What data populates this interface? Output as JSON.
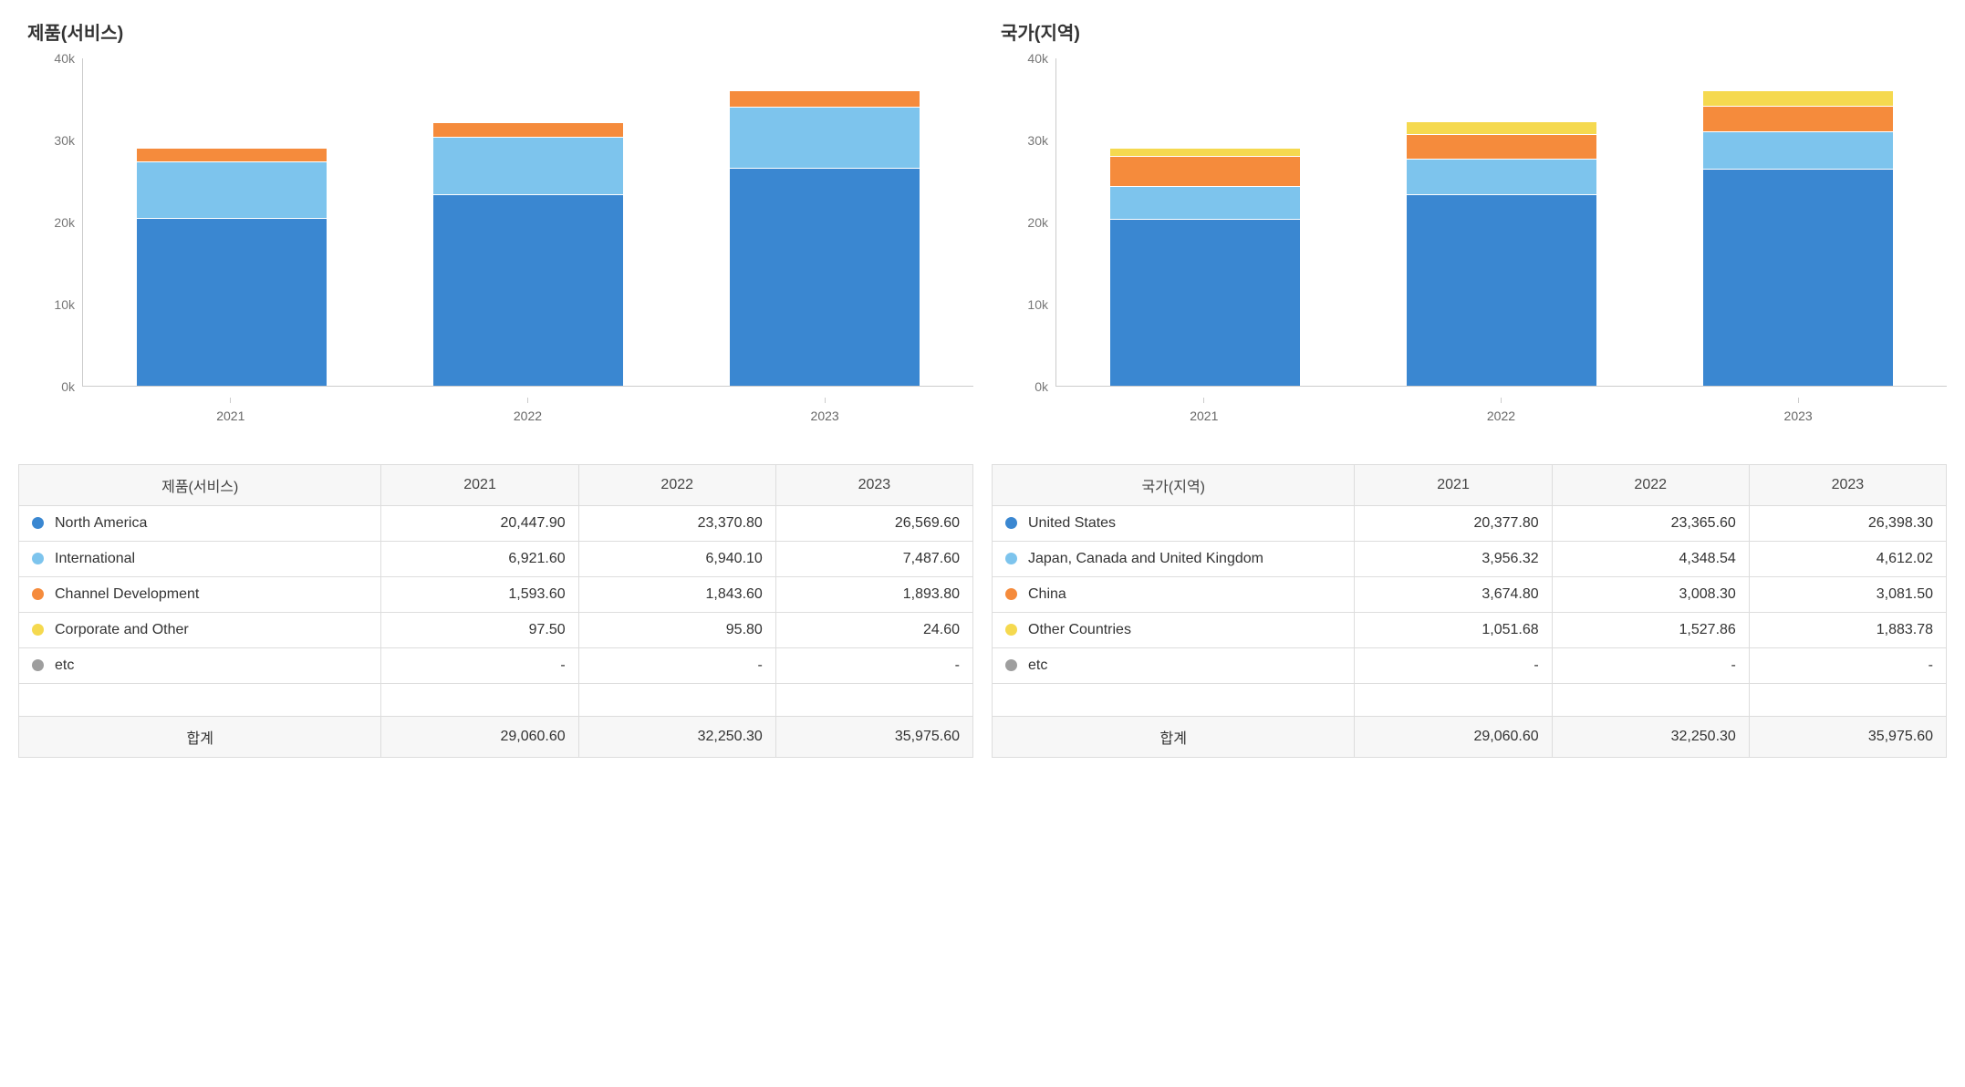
{
  "colors": {
    "series": [
      "#3a87d1",
      "#7dc4ed",
      "#f58b3c",
      "#f5d94f",
      "#9e9e9e"
    ],
    "axis_text": "#777777",
    "grid": "#cccccc",
    "header_bg": "#f7f7f7",
    "border": "#dddddd",
    "background": "#ffffff"
  },
  "typography": {
    "title_fontsize": 20,
    "axis_fontsize": 14,
    "table_fontsize": 16
  },
  "chart_config": {
    "type": "stacked-bar",
    "ylim": [
      0,
      40000
    ],
    "ytick_step": 10000,
    "yticks": [
      "0k",
      "10k",
      "20k",
      "30k",
      "40k"
    ],
    "bar_width_pct": 82
  },
  "years": [
    "2021",
    "2022",
    "2023"
  ],
  "left": {
    "title": "제품(서비스)",
    "header": "제품(서비스)",
    "total_label": "합계",
    "series": [
      {
        "name": "North America",
        "color_index": 0,
        "values": [
          20447.9,
          23370.8,
          26569.6
        ],
        "display": [
          "20,447.90",
          "23,370.80",
          "26,569.60"
        ]
      },
      {
        "name": "International",
        "color_index": 1,
        "values": [
          6921.6,
          6940.1,
          7487.6
        ],
        "display": [
          "6,921.60",
          "6,940.10",
          "7,487.60"
        ]
      },
      {
        "name": "Channel Development",
        "color_index": 2,
        "values": [
          1593.6,
          1843.6,
          1893.8
        ],
        "display": [
          "1,593.60",
          "1,843.60",
          "1,893.80"
        ]
      },
      {
        "name": "Corporate and Other",
        "color_index": 3,
        "values": [
          97.5,
          95.8,
          24.6
        ],
        "display": [
          "97.50",
          "95.80",
          "24.60"
        ]
      },
      {
        "name": "etc",
        "color_index": 4,
        "values": [
          null,
          null,
          null
        ],
        "display": [
          "-",
          "-",
          "-"
        ]
      }
    ],
    "totals": [
      29060.6,
      32250.3,
      35975.6
    ],
    "totals_display": [
      "29,060.60",
      "32,250.30",
      "35,975.60"
    ]
  },
  "right": {
    "title": "국가(지역)",
    "header": "국가(지역)",
    "total_label": "합계",
    "series": [
      {
        "name": "United States",
        "color_index": 0,
        "values": [
          20377.8,
          23365.6,
          26398.3
        ],
        "display": [
          "20,377.80",
          "23,365.60",
          "26,398.30"
        ]
      },
      {
        "name": "Japan, Canada and United Kingdom",
        "color_index": 1,
        "values": [
          3956.32,
          4348.54,
          4612.02
        ],
        "display": [
          "3,956.32",
          "4,348.54",
          "4,612.02"
        ]
      },
      {
        "name": "China",
        "color_index": 2,
        "values": [
          3674.8,
          3008.3,
          3081.5
        ],
        "display": [
          "3,674.80",
          "3,008.30",
          "3,081.50"
        ]
      },
      {
        "name": "Other Countries",
        "color_index": 3,
        "values": [
          1051.68,
          1527.86,
          1883.78
        ],
        "display": [
          "1,051.68",
          "1,527.86",
          "1,883.78"
        ]
      },
      {
        "name": "etc",
        "color_index": 4,
        "values": [
          null,
          null,
          null
        ],
        "display": [
          "-",
          "-",
          "-"
        ]
      }
    ],
    "totals": [
      29060.6,
      32250.3,
      35975.6
    ],
    "totals_display": [
      "29,060.60",
      "32,250.30",
      "35,975.60"
    ]
  }
}
